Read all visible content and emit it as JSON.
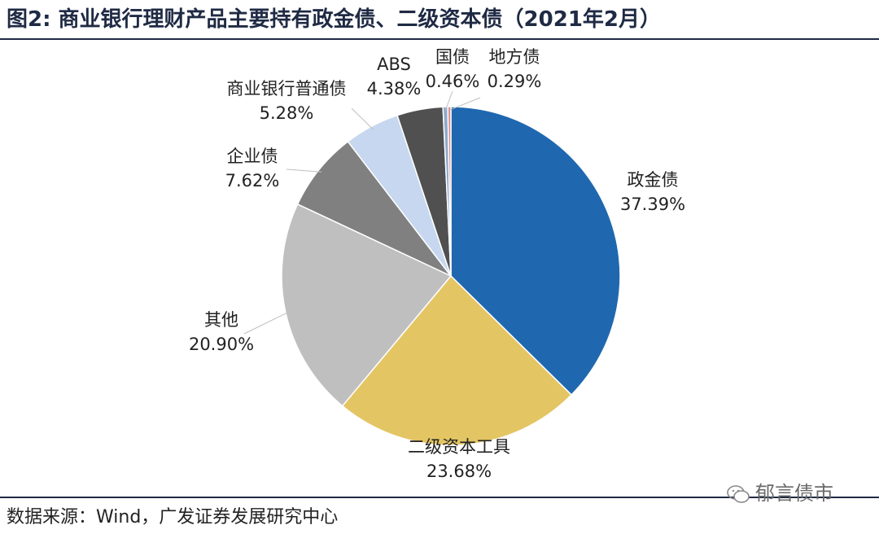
{
  "title": "图2:  商业银行理财产品主要持有政金债、二级资本债（2021年2月）",
  "source": "数据来源：Wind，广发证券发展研究中心",
  "watermark": "郁言债市",
  "chart_data": {
    "type": "pie",
    "title": "",
    "start_angle_deg": 0,
    "direction": "clockwise",
    "slices": [
      {
        "name": "政金债",
        "value": 37.39,
        "label": "37.39%",
        "color": "#1f68b0"
      },
      {
        "name": "二级资本工具",
        "value": 23.68,
        "label": "23.68%",
        "color": "#e4c563"
      },
      {
        "name": "其他",
        "value": 20.9,
        "label": "20.90%",
        "color": "#bfbfbf"
      },
      {
        "name": "企业债",
        "value": 7.62,
        "label": "7.62%",
        "color": "#808080"
      },
      {
        "name": "商业银行普通债",
        "value": 5.28,
        "label": "5.28%",
        "color": "#c6d7ef"
      },
      {
        "name": "ABS",
        "value": 4.38,
        "label": "4.38%",
        "color": "#505050"
      },
      {
        "name": "国债",
        "value": 0.46,
        "label": "0.46%",
        "color": "#8fa9cc"
      },
      {
        "name": "地方债",
        "value": 0.29,
        "label": "0.29%",
        "color": "#d98a88"
      }
    ]
  }
}
